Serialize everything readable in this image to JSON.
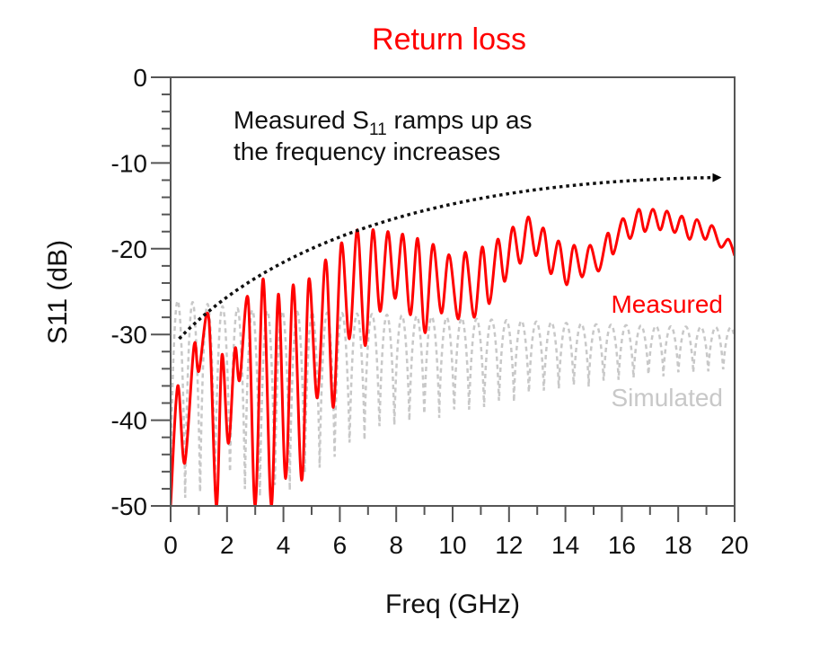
{
  "chart_data": {
    "type": "line",
    "title": "Return loss",
    "xlabel": "Freq (GHz)",
    "ylabel": "S11 (dB)",
    "xlim": [
      0,
      20
    ],
    "ylim": [
      -50,
      0
    ],
    "xticks": [
      0,
      2,
      4,
      6,
      8,
      10,
      12,
      14,
      16,
      18,
      20
    ],
    "xtick_labels": [
      "0",
      "2",
      "4",
      "6",
      "8",
      "10",
      "12",
      "14",
      "16",
      "18",
      "20"
    ],
    "x_minor_step": 1,
    "yticks": [
      0,
      -10,
      -20,
      -30,
      -40,
      -50
    ],
    "ytick_labels": [
      "0",
      "-10",
      "-20",
      "-30",
      "-40",
      "-50"
    ],
    "y_minor_step": 2,
    "grid": false,
    "annotation": {
      "line1_pre": "Measured S",
      "line1_sub": "11",
      "line1_post": " ramps up as",
      "line2": "the frequency increases",
      "arrow": {
        "from": [
          0.3,
          -30.5
        ],
        "to": [
          19.6,
          -11.7
        ],
        "style": "dotted",
        "color": "#000000"
      }
    },
    "series": [
      {
        "name": "Measured",
        "color": "#ff0000",
        "style": "solid",
        "label_position": "right, below curve",
        "points": [
          [
            0.0,
            -50
          ],
          [
            0.25,
            -36
          ],
          [
            0.5,
            -45
          ],
          [
            0.83,
            -31.3
          ],
          [
            1.0,
            -34.3
          ],
          [
            1.35,
            -28
          ],
          [
            1.62,
            -50
          ],
          [
            1.82,
            -32.4
          ],
          [
            2.05,
            -42.7
          ],
          [
            2.28,
            -31.7
          ],
          [
            2.45,
            -35.3
          ],
          [
            2.75,
            -25.9
          ],
          [
            3.0,
            -50
          ],
          [
            3.28,
            -23.5
          ],
          [
            3.57,
            -50
          ],
          [
            3.82,
            -25.3
          ],
          [
            4.08,
            -46.8
          ],
          [
            4.35,
            -24.2
          ],
          [
            4.65,
            -47
          ],
          [
            4.9,
            -23.6
          ],
          [
            5.2,
            -37.4
          ],
          [
            5.5,
            -21.3
          ],
          [
            5.77,
            -38.5
          ],
          [
            6.05,
            -19.4
          ],
          [
            6.34,
            -30.5
          ],
          [
            6.62,
            -17.8
          ],
          [
            6.9,
            -31.3
          ],
          [
            7.17,
            -17.8
          ],
          [
            7.43,
            -27.3
          ],
          [
            7.7,
            -18
          ],
          [
            7.96,
            -25.8
          ],
          [
            8.23,
            -18.3
          ],
          [
            8.5,
            -27.7
          ],
          [
            8.76,
            -18.8
          ],
          [
            9.02,
            -29.8
          ],
          [
            9.3,
            -19.5
          ],
          [
            9.6,
            -27.5
          ],
          [
            9.87,
            -20.7
          ],
          [
            10.2,
            -28.2
          ],
          [
            10.45,
            -20.4
          ],
          [
            10.77,
            -28
          ],
          [
            11.05,
            -19.8
          ],
          [
            11.3,
            -26.4
          ],
          [
            11.6,
            -18.9
          ],
          [
            11.85,
            -23.8
          ],
          [
            12.13,
            -17.5
          ],
          [
            12.4,
            -21.7
          ],
          [
            12.68,
            -16.3
          ],
          [
            12.95,
            -20.8
          ],
          [
            13.22,
            -17.6
          ],
          [
            13.48,
            -22.9
          ],
          [
            13.76,
            -19.1
          ],
          [
            14.04,
            -24.2
          ],
          [
            14.3,
            -19.6
          ],
          [
            14.59,
            -23.3
          ],
          [
            14.87,
            -19.6
          ],
          [
            15.18,
            -22.6
          ],
          [
            15.5,
            -18.2
          ],
          [
            15.7,
            -20.6
          ],
          [
            16.03,
            -16.5
          ],
          [
            16.3,
            -18.8
          ],
          [
            16.6,
            -15.4
          ],
          [
            16.82,
            -18
          ],
          [
            17.1,
            -15.4
          ],
          [
            17.36,
            -17.8
          ],
          [
            17.6,
            -15.6
          ],
          [
            17.87,
            -18.1
          ],
          [
            18.13,
            -16.2
          ],
          [
            18.4,
            -18.9
          ],
          [
            18.66,
            -16.6
          ],
          [
            18.95,
            -18.9
          ],
          [
            19.2,
            -17.3
          ],
          [
            19.5,
            -19.8
          ],
          [
            19.78,
            -18.9
          ],
          [
            20.0,
            -20.8
          ]
        ]
      },
      {
        "name": "Simulated",
        "color": "#c8c8c8",
        "style": "dashed",
        "label_position": "right, below curve",
        "period_ghz": 0.53,
        "envelope": {
          "freq": [
            0,
            1,
            2,
            3,
            5,
            7,
            9,
            11,
            13,
            15,
            17,
            20
          ],
          "peak_db": [
            -26,
            -26.3,
            -26.8,
            -27.2,
            -27.4,
            -27.6,
            -27.9,
            -28.2,
            -28.5,
            -28.8,
            -29,
            -29.2
          ],
          "null_db": [
            -50,
            -50,
            -47,
            -50,
            -47,
            -42,
            -40,
            -39,
            -37,
            -36,
            -35,
            -34.3
          ]
        }
      }
    ]
  }
}
